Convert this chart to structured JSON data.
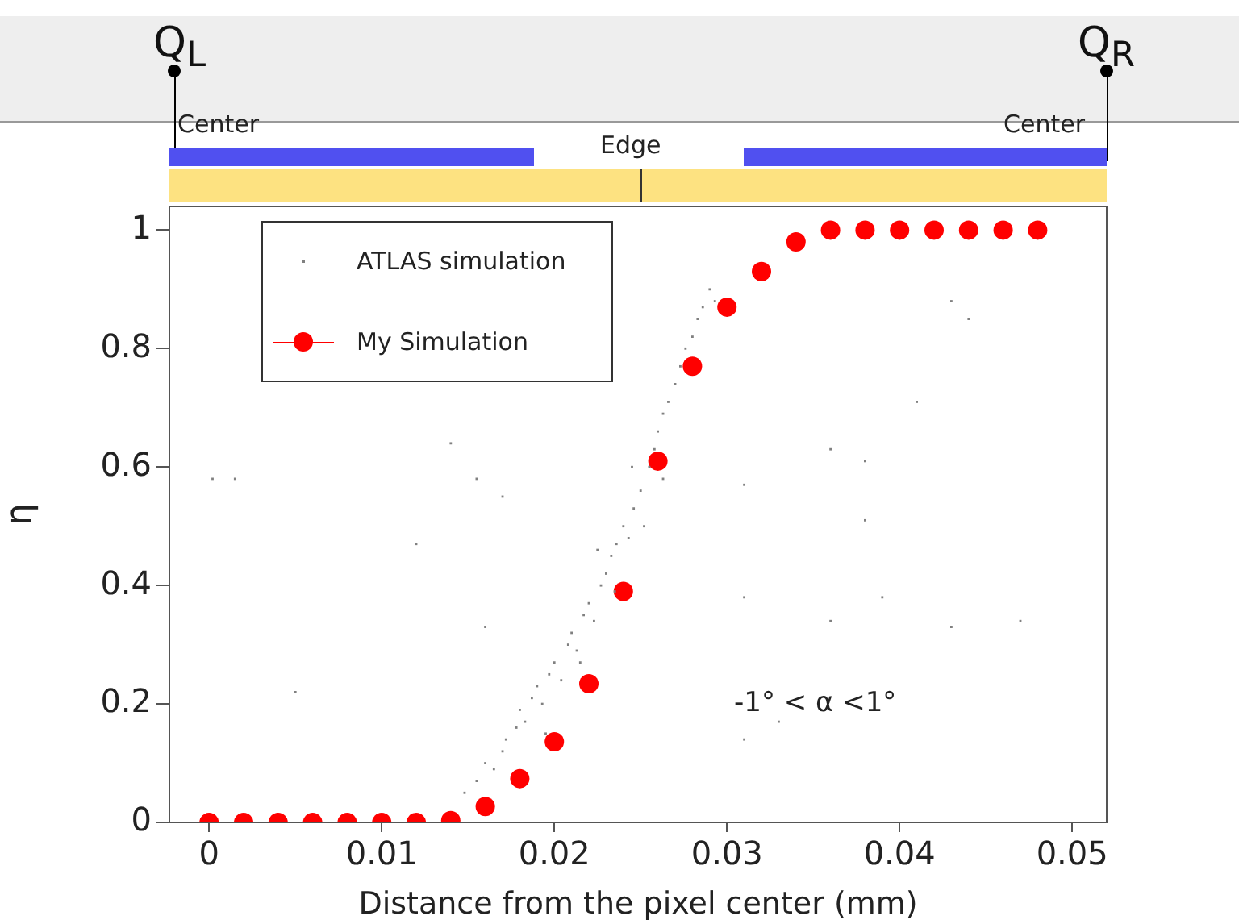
{
  "chart_data": {
    "type": "scatter",
    "xlabel": "Distance from the pixel center (mm)",
    "ylabel": "η",
    "annotations": [
      "Q$_{L}$",
      "Q$_{R}$",
      "Center",
      "Edge",
      "Center",
      "-1° < α <1°"
    ],
    "xlim": [
      -0.0023,
      0.052
    ],
    "ylim": [
      0,
      1.04
    ],
    "xticks": [
      0,
      0.01,
      0.02,
      0.03,
      0.04,
      0.05
    ],
    "yticks": [
      0,
      0.2,
      0.4,
      0.6,
      0.8,
      1
    ],
    "grid": false,
    "legend": "top left",
    "series": [
      {
        "name": "ATLAS simulation",
        "color": "#808080",
        "marker": "square",
        "x": [
          0.0148,
          0.0155,
          0.016,
          0.0165,
          0.017,
          0.0172,
          0.0178,
          0.018,
          0.0183,
          0.0187,
          0.019,
          0.0193,
          0.0197,
          0.02,
          0.0204,
          0.0208,
          0.021,
          0.0213,
          0.0217,
          0.022,
          0.0223,
          0.0227,
          0.023,
          0.0233,
          0.0236,
          0.024,
          0.0243,
          0.0246,
          0.025,
          0.0252,
          0.0255,
          0.0258,
          0.026,
          0.0263,
          0.0266,
          0.027,
          0.0273,
          0.0276,
          0.028,
          0.0283,
          0.0286,
          0.029,
          0.0293,
          0.0263,
          0.0235,
          0.0215,
          0.0195,
          0.0245,
          0.0225,
          0.0002,
          0.0015,
          0.014,
          0.0155,
          0.017,
          0.016,
          0.012,
          0.036,
          0.038,
          0.041,
          0.043,
          0.044,
          0.038,
          0.039,
          0.036,
          0.031,
          0.031,
          0.033,
          0.043,
          0.047,
          0.031,
          0.005
        ],
        "values": [
          0.05,
          0.07,
          0.1,
          0.09,
          0.12,
          0.14,
          0.16,
          0.19,
          0.17,
          0.21,
          0.23,
          0.2,
          0.25,
          0.27,
          0.24,
          0.3,
          0.32,
          0.29,
          0.35,
          0.37,
          0.34,
          0.4,
          0.42,
          0.45,
          0.47,
          0.5,
          0.48,
          0.53,
          0.56,
          0.5,
          0.6,
          0.63,
          0.66,
          0.69,
          0.71,
          0.74,
          0.77,
          0.8,
          0.82,
          0.85,
          0.87,
          0.9,
          0.88,
          0.58,
          0.39,
          0.27,
          0.15,
          0.6,
          0.46,
          0.58,
          0.58,
          0.64,
          0.58,
          0.55,
          0.33,
          0.47,
          0.63,
          0.61,
          0.71,
          0.88,
          0.85,
          0.51,
          0.38,
          0.34,
          0.38,
          0.14,
          0.17,
          0.33,
          0.34,
          0.57,
          0.22
        ]
      },
      {
        "name": "My Simulation",
        "color": "#ff0000",
        "marker": "circle",
        "x": [
          0,
          0.002,
          0.004,
          0.006,
          0.008,
          0.01,
          0.012,
          0.014,
          0.016,
          0.018,
          0.02,
          0.022,
          0.024,
          0.026,
          0.028,
          0.03,
          0.032,
          0.034,
          0.036,
          0.038,
          0.04,
          0.042,
          0.044,
          0.046,
          0.048
        ],
        "values": [
          0,
          0,
          0,
          0,
          0,
          0,
          0,
          0.003,
          0.027,
          0.074,
          0.136,
          0.234,
          0.39,
          0.61,
          0.77,
          0.87,
          0.93,
          0.98,
          1,
          1,
          1,
          1,
          1,
          1,
          1
        ]
      }
    ]
  }
}
